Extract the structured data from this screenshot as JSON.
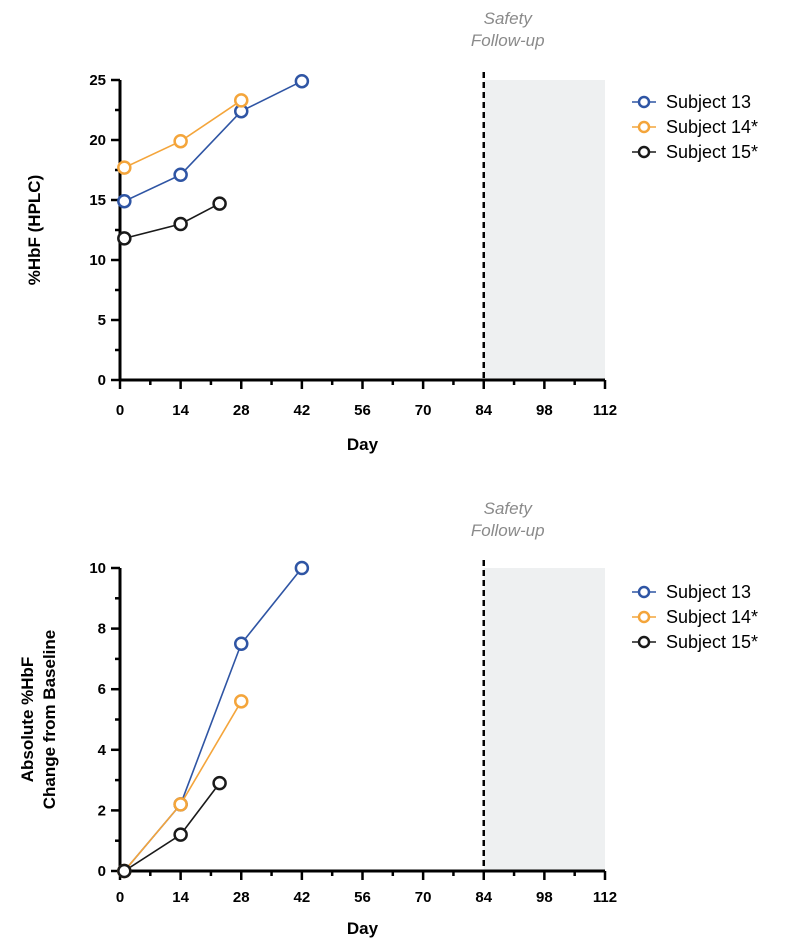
{
  "chart_data": [
    {
      "type": "line",
      "title": "",
      "xlabel": "Day",
      "ylabel": "%HbF (HPLC)",
      "xlim": [
        0,
        112
      ],
      "ylim": [
        0,
        25
      ],
      "x_ticks": [
        0,
        14,
        28,
        42,
        56,
        70,
        84,
        98,
        112
      ],
      "y_ticks": [
        0,
        5,
        10,
        15,
        20,
        25
      ],
      "grid": false,
      "legend_position": "right",
      "annotation": {
        "text_lines": [
          "Safety",
          "Follow-up"
        ],
        "x": 84
      },
      "shaded_region": {
        "x_from": 84,
        "x_to": 112,
        "color": "#eef0f1"
      },
      "series": [
        {
          "name": "Subject 13",
          "color": "#2f55a4",
          "points": [
            [
              1,
              14.9
            ],
            [
              14,
              17.1
            ],
            [
              28,
              22.4
            ],
            [
              42,
              24.9
            ]
          ]
        },
        {
          "name": "Subject 14*",
          "color": "#f4a53b",
          "points": [
            [
              1,
              17.7
            ],
            [
              14,
              19.9
            ],
            [
              28,
              23.3
            ]
          ]
        },
        {
          "name": "Subject 15*",
          "color": "#1a1a1a",
          "points": [
            [
              1,
              11.8
            ],
            [
              14,
              13.0
            ],
            [
              23,
              14.7
            ]
          ]
        }
      ]
    },
    {
      "type": "line",
      "title": "",
      "xlabel": "Day",
      "ylabel": [
        "Absolute %HbF",
        "Change from Baseline"
      ],
      "xlim": [
        0,
        112
      ],
      "ylim": [
        0,
        10
      ],
      "x_ticks": [
        0,
        14,
        28,
        42,
        56,
        70,
        84,
        98,
        112
      ],
      "y_ticks": [
        0,
        2,
        4,
        6,
        8,
        10
      ],
      "grid": false,
      "legend_position": "right",
      "annotation": {
        "text_lines": [
          "Safety",
          "Follow-up"
        ],
        "x": 84
      },
      "shaded_region": {
        "x_from": 84,
        "x_to": 112,
        "color": "#eef0f1"
      },
      "series": [
        {
          "name": "Subject 13",
          "color": "#2f55a4",
          "points": [
            [
              1,
              0
            ],
            [
              14,
              2.2
            ],
            [
              28,
              7.5
            ],
            [
              42,
              10.0
            ]
          ]
        },
        {
          "name": "Subject 14*",
          "color": "#f4a53b",
          "points": [
            [
              1,
              0
            ],
            [
              14,
              2.2
            ],
            [
              28,
              5.6
            ]
          ]
        },
        {
          "name": "Subject 15*",
          "color": "#1a1a1a",
          "points": [
            [
              1,
              0
            ],
            [
              14,
              1.2
            ],
            [
              23,
              2.9
            ]
          ]
        }
      ]
    }
  ]
}
